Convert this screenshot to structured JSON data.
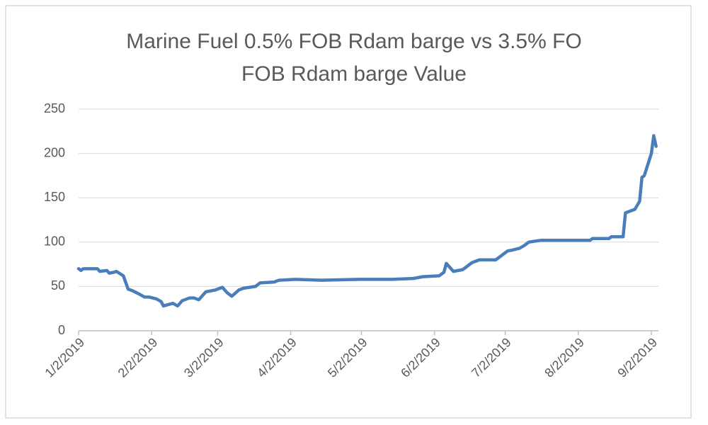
{
  "chart_data": {
    "type": "line",
    "title": "Marine Fuel 0.5% FOB Rdam barge vs 3.5% FO FOB Rdam barge Value",
    "color": "#4a7ebb",
    "x": [
      "2019-01-02",
      "2019-01-03",
      "2019-01-04",
      "2019-01-08",
      "2019-01-10",
      "2019-01-11",
      "2019-01-14",
      "2019-01-15",
      "2019-01-17",
      "2019-01-18",
      "2019-01-21",
      "2019-01-23",
      "2019-01-25",
      "2019-01-28",
      "2019-01-30",
      "2019-02-01",
      "2019-02-04",
      "2019-02-06",
      "2019-02-07",
      "2019-02-11",
      "2019-02-13",
      "2019-02-15",
      "2019-02-18",
      "2019-02-20",
      "2019-02-22",
      "2019-02-25",
      "2019-02-27",
      "2019-03-01",
      "2019-03-04",
      "2019-03-06",
      "2019-03-08",
      "2019-03-11",
      "2019-03-13",
      "2019-03-18",
      "2019-03-20",
      "2019-03-26",
      "2019-03-28",
      "2019-04-04",
      "2019-04-15",
      "2019-05-01",
      "2019-05-15",
      "2019-05-24",
      "2019-05-28",
      "2019-06-04",
      "2019-06-06",
      "2019-06-07",
      "2019-06-10",
      "2019-06-14",
      "2019-06-18",
      "2019-06-21",
      "2019-06-28",
      "2019-07-03",
      "2019-07-05",
      "2019-07-08",
      "2019-07-10",
      "2019-07-12",
      "2019-07-17",
      "2019-08-01",
      "2019-08-07",
      "2019-08-08",
      "2019-08-15",
      "2019-08-16",
      "2019-08-21",
      "2019-08-22",
      "2019-08-26",
      "2019-08-28",
      "2019-08-29",
      "2019-08-30",
      "2019-09-02",
      "2019-09-03",
      "2019-09-04"
    ],
    "values": [
      70,
      68,
      70,
      70,
      70,
      67,
      68,
      65,
      66,
      67,
      62,
      47,
      45,
      41,
      38,
      38,
      36,
      33,
      28,
      31,
      28,
      34,
      37,
      37,
      35,
      44,
      45,
      46,
      49,
      43,
      39,
      46,
      48,
      50,
      54,
      55,
      57,
      58,
      57,
      58,
      58,
      59,
      61,
      62,
      66,
      76,
      67,
      69,
      77,
      80,
      80,
      90,
      91,
      93,
      96,
      100,
      102,
      102,
      102,
      104,
      104,
      106,
      106,
      133,
      137,
      146,
      173,
      175,
      200,
      220,
      208
    ],
    "xlim": [
      "2019-01-02",
      "2019-09-05"
    ],
    "xticks": [
      {
        "value": "2019-01-02",
        "label": "1/2/2019"
      },
      {
        "value": "2019-02-02",
        "label": "2/2/2019"
      },
      {
        "value": "2019-03-02",
        "label": "3/2/2019"
      },
      {
        "value": "2019-04-02",
        "label": "4/2/2019"
      },
      {
        "value": "2019-05-02",
        "label": "5/2/2019"
      },
      {
        "value": "2019-06-02",
        "label": "6/2/2019"
      },
      {
        "value": "2019-07-02",
        "label": "7/2/2019"
      },
      {
        "value": "2019-08-02",
        "label": "8/2/2019"
      },
      {
        "value": "2019-09-02",
        "label": "9/2/2019"
      }
    ],
    "ylim": [
      0,
      250
    ],
    "yticks": [
      0,
      50,
      100,
      150,
      200,
      250
    ],
    "grid": true
  }
}
